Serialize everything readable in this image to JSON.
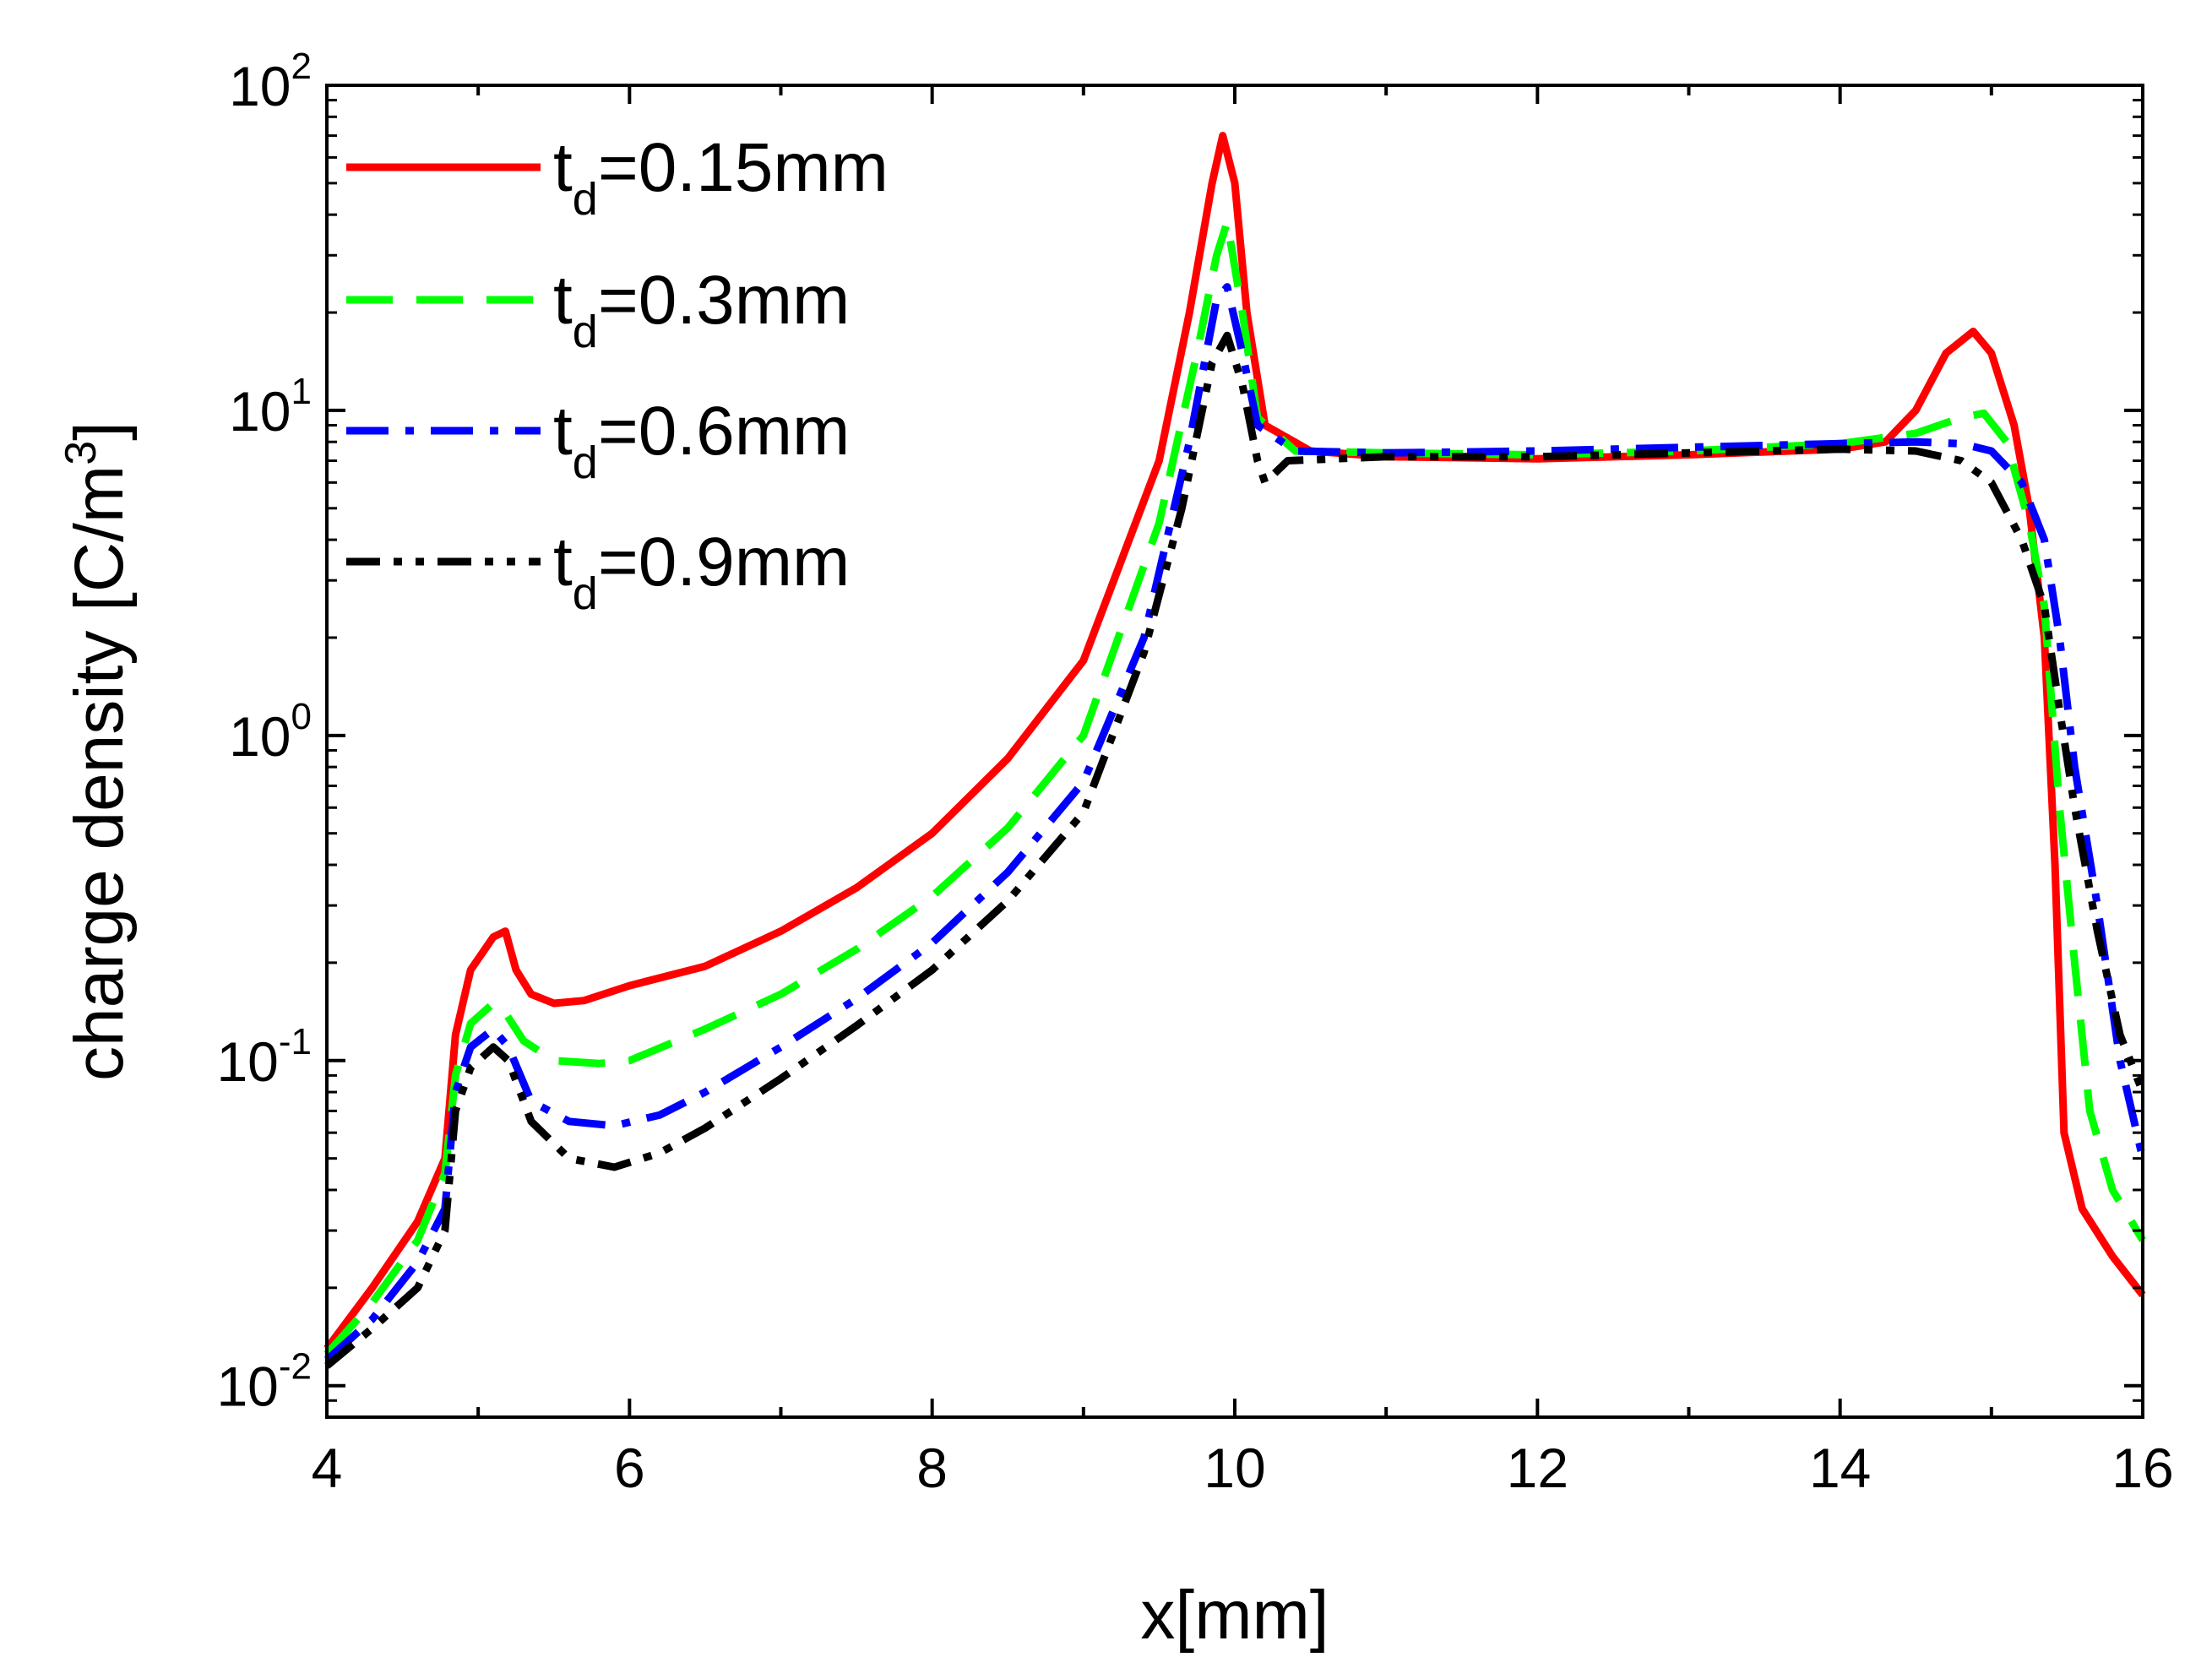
{
  "chart_data": {
    "type": "line",
    "title": "",
    "xlabel": "x[mm]",
    "ylabel": "charge density [C/m",
    "ylabel_superscript": "3",
    "ylabel_close": "]",
    "xlim": [
      4,
      16
    ],
    "ylim": [
      0.008,
      100
    ],
    "yscale": "log",
    "x_ticks": [
      {
        "value": 4,
        "label": "4"
      },
      {
        "value": 6,
        "label": "6"
      },
      {
        "value": 8,
        "label": "8"
      },
      {
        "value": 10,
        "label": "10"
      },
      {
        "value": 12,
        "label": "12"
      },
      {
        "value": 14,
        "label": "14"
      },
      {
        "value": 16,
        "label": "16"
      }
    ],
    "y_ticks": [
      {
        "value": 0.01,
        "base": "10",
        "exp": "-2"
      },
      {
        "value": 0.1,
        "base": "10",
        "exp": "-1"
      },
      {
        "value": 1,
        "base": "10",
        "exp": "0"
      },
      {
        "value": 10,
        "base": "10",
        "exp": "1"
      },
      {
        "value": 100,
        "base": "10",
        "exp": "2"
      }
    ],
    "grid": false,
    "legend_position": "top-left",
    "series": [
      {
        "name": "td=0.15mm",
        "legend_main": "t",
        "legend_sub": "d",
        "legend_rest": "=0.15mm",
        "color": "#ff0000",
        "dash": "solid",
        "points": [
          [
            4.0,
            0.013
          ],
          [
            4.3,
            0.02
          ],
          [
            4.6,
            0.032
          ],
          [
            4.78,
            0.05
          ],
          [
            4.85,
            0.12
          ],
          [
            4.95,
            0.19
          ],
          [
            5.1,
            0.24
          ],
          [
            5.18,
            0.25
          ],
          [
            5.25,
            0.19
          ],
          [
            5.35,
            0.16
          ],
          [
            5.5,
            0.15
          ],
          [
            5.7,
            0.153
          ],
          [
            6.0,
            0.17
          ],
          [
            6.5,
            0.195
          ],
          [
            7.0,
            0.25
          ],
          [
            7.5,
            0.34
          ],
          [
            8.0,
            0.5
          ],
          [
            8.5,
            0.85
          ],
          [
            9.0,
            1.7
          ],
          [
            9.5,
            7.0
          ],
          [
            9.7,
            20.0
          ],
          [
            9.85,
            50.0
          ],
          [
            9.92,
            70.0
          ],
          [
            10.0,
            50.0
          ],
          [
            10.08,
            20.0
          ],
          [
            10.2,
            9.0
          ],
          [
            10.5,
            7.5
          ],
          [
            11.0,
            7.2
          ],
          [
            12.0,
            7.1
          ],
          [
            13.0,
            7.3
          ],
          [
            14.0,
            7.6
          ],
          [
            14.3,
            8.0
          ],
          [
            14.5,
            10.0
          ],
          [
            14.7,
            15.0
          ],
          [
            14.88,
            17.5
          ],
          [
            15.0,
            15.0
          ],
          [
            15.15,
            9.0
          ],
          [
            15.25,
            5.0
          ],
          [
            15.35,
            2.0
          ],
          [
            15.42,
            0.4
          ],
          [
            15.48,
            0.06
          ],
          [
            15.6,
            0.035
          ],
          [
            15.8,
            0.025
          ],
          [
            16.0,
            0.019
          ]
        ]
      },
      {
        "name": "td=0.3mm",
        "legend_main": "t",
        "legend_sub": "d",
        "legend_rest": "=0.3mm",
        "color": "#00ff00",
        "dash": "dashed",
        "points": [
          [
            4.0,
            0.0125
          ],
          [
            4.3,
            0.018
          ],
          [
            4.6,
            0.028
          ],
          [
            4.78,
            0.045
          ],
          [
            4.85,
            0.09
          ],
          [
            4.95,
            0.13
          ],
          [
            5.1,
            0.15
          ],
          [
            5.18,
            0.14
          ],
          [
            5.3,
            0.115
          ],
          [
            5.5,
            0.1
          ],
          [
            5.8,
            0.098
          ],
          [
            6.0,
            0.1
          ],
          [
            6.5,
            0.125
          ],
          [
            7.0,
            0.16
          ],
          [
            7.5,
            0.22
          ],
          [
            8.0,
            0.32
          ],
          [
            8.5,
            0.52
          ],
          [
            9.0,
            1.0
          ],
          [
            9.5,
            4.5
          ],
          [
            9.75,
            15.0
          ],
          [
            9.88,
            30.0
          ],
          [
            9.95,
            38.0
          ],
          [
            10.05,
            20.0
          ],
          [
            10.15,
            9.5
          ],
          [
            10.4,
            7.5
          ],
          [
            11.0,
            7.4
          ],
          [
            12.0,
            7.3
          ],
          [
            13.0,
            7.5
          ],
          [
            14.0,
            7.9
          ],
          [
            14.5,
            8.5
          ],
          [
            14.8,
            9.5
          ],
          [
            14.95,
            9.8
          ],
          [
            15.1,
            8.0
          ],
          [
            15.25,
            4.5
          ],
          [
            15.35,
            2.5
          ],
          [
            15.45,
            0.6
          ],
          [
            15.55,
            0.2
          ],
          [
            15.65,
            0.07
          ],
          [
            15.8,
            0.04
          ],
          [
            16.0,
            0.028
          ]
        ]
      },
      {
        "name": "td=0.6mm",
        "legend_main": "t",
        "legend_sub": "d",
        "legend_rest": "=0.6mm",
        "color": "#0000ff",
        "dash": "dashdot",
        "points": [
          [
            4.0,
            0.012
          ],
          [
            4.3,
            0.016
          ],
          [
            4.6,
            0.024
          ],
          [
            4.78,
            0.035
          ],
          [
            4.85,
            0.08
          ],
          [
            4.95,
            0.11
          ],
          [
            5.1,
            0.125
          ],
          [
            5.2,
            0.11
          ],
          [
            5.35,
            0.075
          ],
          [
            5.6,
            0.065
          ],
          [
            5.9,
            0.063
          ],
          [
            6.2,
            0.068
          ],
          [
            6.5,
            0.08
          ],
          [
            7.0,
            0.11
          ],
          [
            7.5,
            0.155
          ],
          [
            8.0,
            0.23
          ],
          [
            8.5,
            0.38
          ],
          [
            9.0,
            0.72
          ],
          [
            9.4,
            2.0
          ],
          [
            9.7,
            8.0
          ],
          [
            9.88,
            22.0
          ],
          [
            9.95,
            24.0
          ],
          [
            10.05,
            15.0
          ],
          [
            10.15,
            9.0
          ],
          [
            10.4,
            7.5
          ],
          [
            11.0,
            7.4
          ],
          [
            12.0,
            7.5
          ],
          [
            13.0,
            7.7
          ],
          [
            14.0,
            7.9
          ],
          [
            14.5,
            8.0
          ],
          [
            14.8,
            7.9
          ],
          [
            15.0,
            7.5
          ],
          [
            15.2,
            6.0
          ],
          [
            15.35,
            4.0
          ],
          [
            15.45,
            2.0
          ],
          [
            15.55,
            0.8
          ],
          [
            15.7,
            0.3
          ],
          [
            15.85,
            0.1
          ],
          [
            16.0,
            0.05
          ]
        ]
      },
      {
        "name": "td=0.9mm",
        "legend_main": "t",
        "legend_sub": "d",
        "legend_rest": "=0.9mm",
        "color": "#000000",
        "dash": "dashdotdot",
        "points": [
          [
            4.0,
            0.0115
          ],
          [
            4.3,
            0.015
          ],
          [
            4.6,
            0.02
          ],
          [
            4.78,
            0.03
          ],
          [
            4.85,
            0.07
          ],
          [
            4.95,
            0.095
          ],
          [
            5.1,
            0.11
          ],
          [
            5.2,
            0.1
          ],
          [
            5.35,
            0.065
          ],
          [
            5.6,
            0.05
          ],
          [
            5.9,
            0.047
          ],
          [
            6.2,
            0.052
          ],
          [
            6.5,
            0.062
          ],
          [
            7.0,
            0.088
          ],
          [
            7.5,
            0.128
          ],
          [
            8.0,
            0.19
          ],
          [
            8.5,
            0.31
          ],
          [
            9.0,
            0.58
          ],
          [
            9.4,
            1.8
          ],
          [
            9.65,
            5.0
          ],
          [
            9.85,
            14.0
          ],
          [
            9.95,
            17.0
          ],
          [
            10.05,
            12.0
          ],
          [
            10.15,
            7.0
          ],
          [
            10.2,
            6.0
          ],
          [
            10.35,
            7.0
          ],
          [
            11.0,
            7.2
          ],
          [
            12.0,
            7.2
          ],
          [
            13.0,
            7.4
          ],
          [
            14.0,
            7.6
          ],
          [
            14.5,
            7.5
          ],
          [
            14.8,
            7.0
          ],
          [
            15.0,
            6.0
          ],
          [
            15.2,
            4.0
          ],
          [
            15.35,
            2.5
          ],
          [
            15.45,
            1.2
          ],
          [
            15.55,
            0.6
          ],
          [
            15.7,
            0.25
          ],
          [
            15.85,
            0.12
          ],
          [
            16.0,
            0.08
          ]
        ]
      }
    ]
  }
}
